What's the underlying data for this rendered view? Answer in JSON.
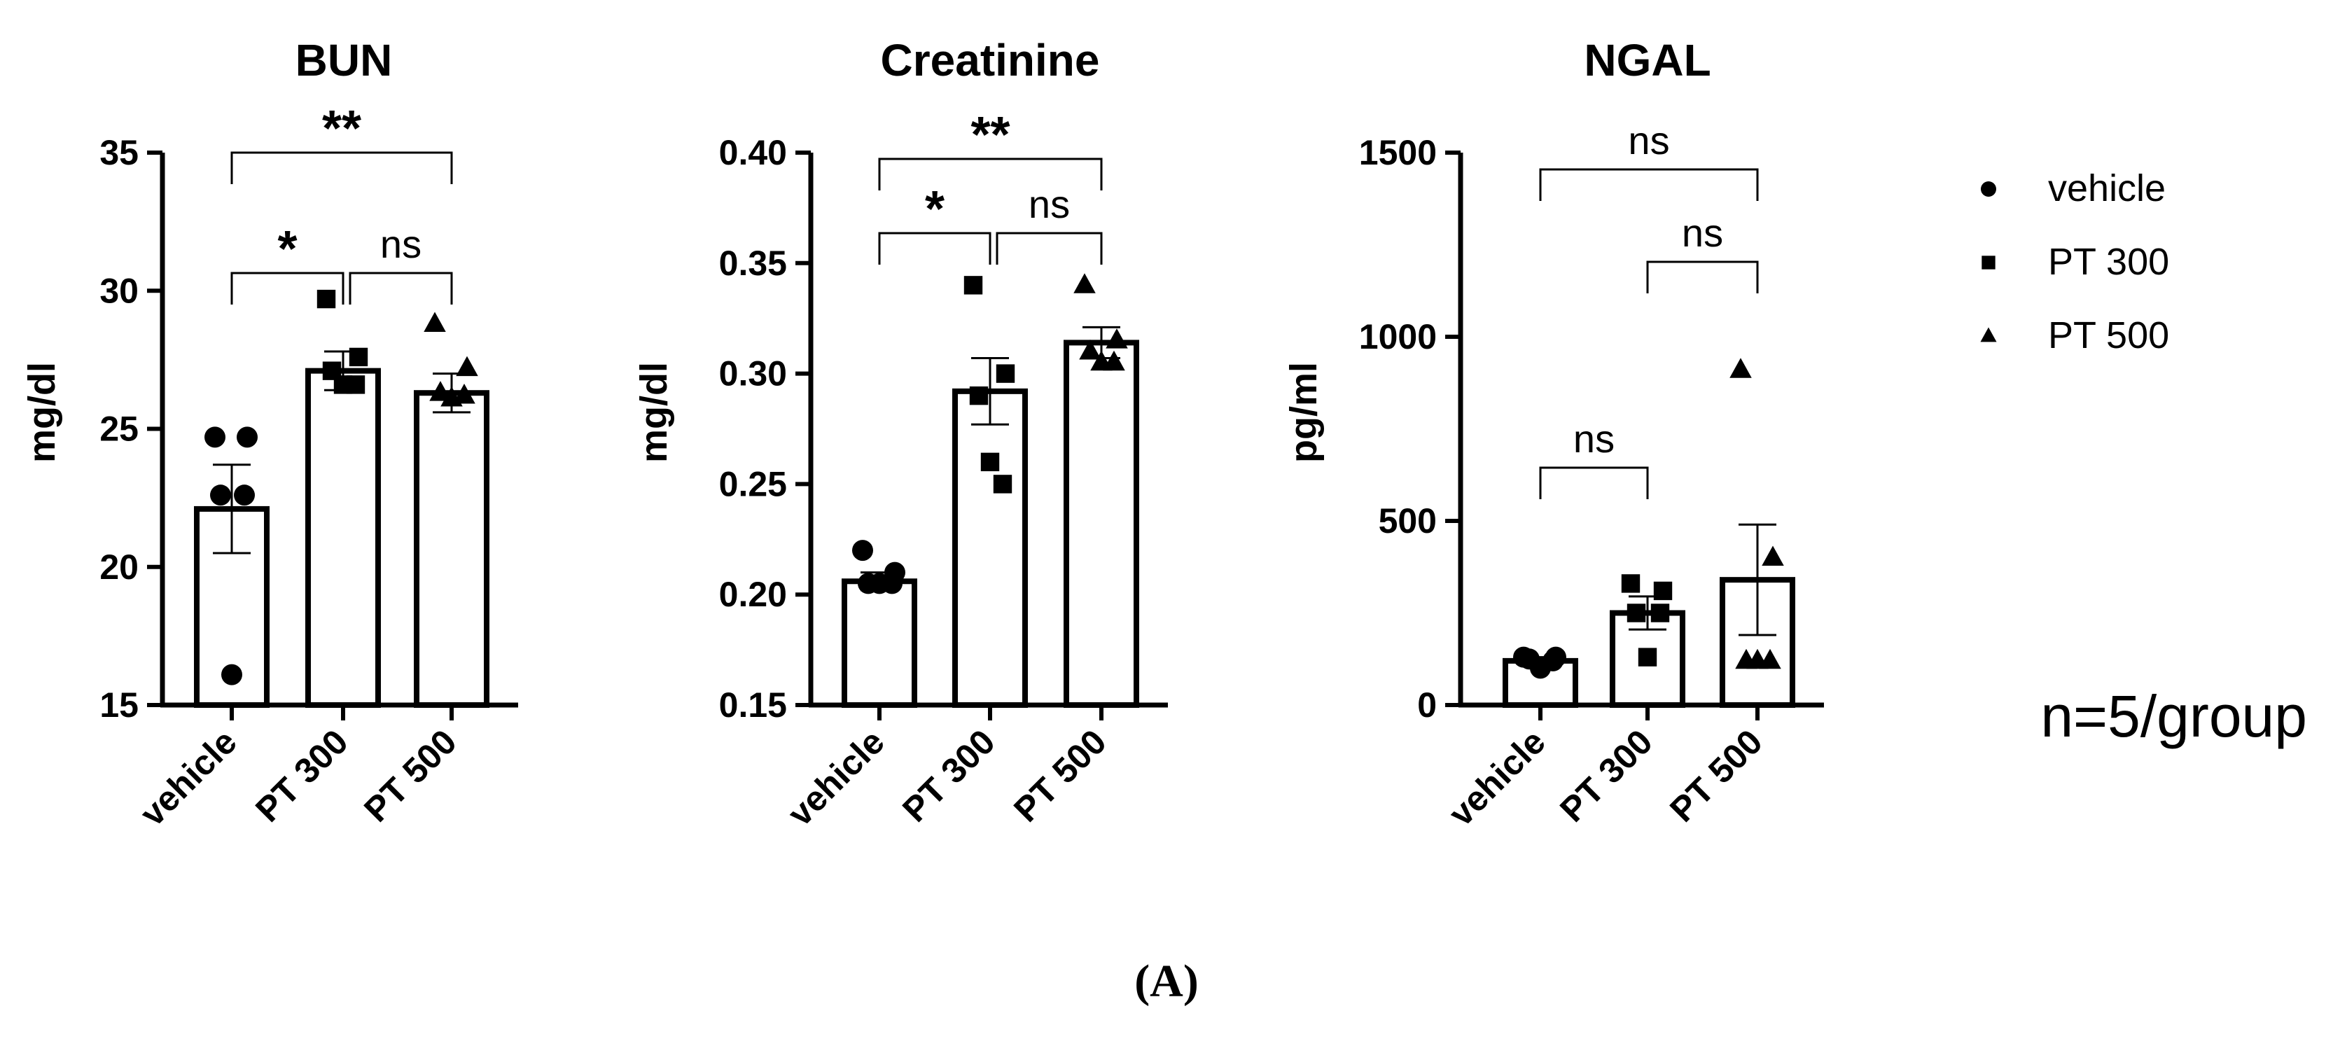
{
  "chart_data": [
    {
      "type": "bar",
      "title": "BUN",
      "ylabel": "mg/dl",
      "xlabel": "",
      "ylim": [
        15,
        35
      ],
      "yticks": [
        15,
        20,
        25,
        30,
        35
      ],
      "categories": [
        "vehicle",
        "PT 300",
        "PT 500"
      ],
      "means": [
        22.1,
        27.1,
        26.3
      ],
      "sem": [
        1.6,
        0.7,
        0.7
      ],
      "points": [
        [
          24.7,
          24.7,
          22.6,
          22.6,
          16.1
        ],
        [
          29.7,
          27.6,
          27.1,
          26.6,
          26.6
        ],
        [
          28.8,
          27.2,
          26.3,
          26.2,
          26.1
        ]
      ],
      "markers": [
        "circle",
        "square",
        "triangle"
      ],
      "comparisons": [
        {
          "from": 0,
          "to": 1,
          "label": "*",
          "level": 1
        },
        {
          "from": 1,
          "to": 2,
          "label": "ns",
          "level": 1
        },
        {
          "from": 0,
          "to": 2,
          "label": "**",
          "level": 2
        }
      ]
    },
    {
      "type": "bar",
      "title": "Creatinine",
      "ylabel": "mg/dl",
      "xlabel": "",
      "ylim": [
        0.15,
        0.4
      ],
      "yticks": [
        0.15,
        0.2,
        0.25,
        0.3,
        0.35,
        0.4
      ],
      "categories": [
        "vehicle",
        "PT 300",
        "PT 500"
      ],
      "means": [
        0.206,
        0.292,
        0.314
      ],
      "sem": [
        0.004,
        0.015,
        0.007
      ],
      "points": [
        [
          0.22,
          0.21,
          0.205,
          0.205,
          0.205
        ],
        [
          0.34,
          0.3,
          0.29,
          0.25,
          0.26
        ],
        [
          0.34,
          0.315,
          0.31,
          0.305,
          0.305
        ]
      ],
      "markers": [
        "circle",
        "square",
        "triangle"
      ],
      "comparisons": [
        {
          "from": 0,
          "to": 1,
          "label": "*",
          "level": 1
        },
        {
          "from": 1,
          "to": 2,
          "label": "ns",
          "level": 1
        },
        {
          "from": 0,
          "to": 2,
          "label": "**",
          "level": 2
        }
      ]
    },
    {
      "type": "bar",
      "title": "NGAL",
      "ylabel": "pg/ml",
      "xlabel": "",
      "ylim": [
        0,
        1500
      ],
      "yticks": [
        0,
        500,
        1000,
        1500
      ],
      "categories": [
        "vehicle",
        "PT 300",
        "PT 500"
      ],
      "means": [
        120,
        250,
        340
      ],
      "sem": [
        10,
        45,
        150
      ],
      "points": [
        [
          130,
          130,
          125,
          120,
          100
        ],
        [
          330,
          310,
          250,
          250,
          130
        ],
        [
          910,
          400,
          120,
          120,
          120
        ]
      ],
      "markers": [
        "circle",
        "square",
        "triangle"
      ],
      "comparisons": [
        {
          "from": 0,
          "to": 1,
          "label": "ns",
          "level": 1
        },
        {
          "from": 1,
          "to": 2,
          "label": "ns",
          "level": 2
        },
        {
          "from": 0,
          "to": 2,
          "label": "ns",
          "level": 3
        }
      ]
    }
  ],
  "legend": [
    {
      "label": "vehicle",
      "marker": "circle"
    },
    {
      "label": "PT 300",
      "marker": "square"
    },
    {
      "label": "PT 500",
      "marker": "triangle"
    }
  ],
  "note": "n=5/group",
  "caption": "(A)"
}
